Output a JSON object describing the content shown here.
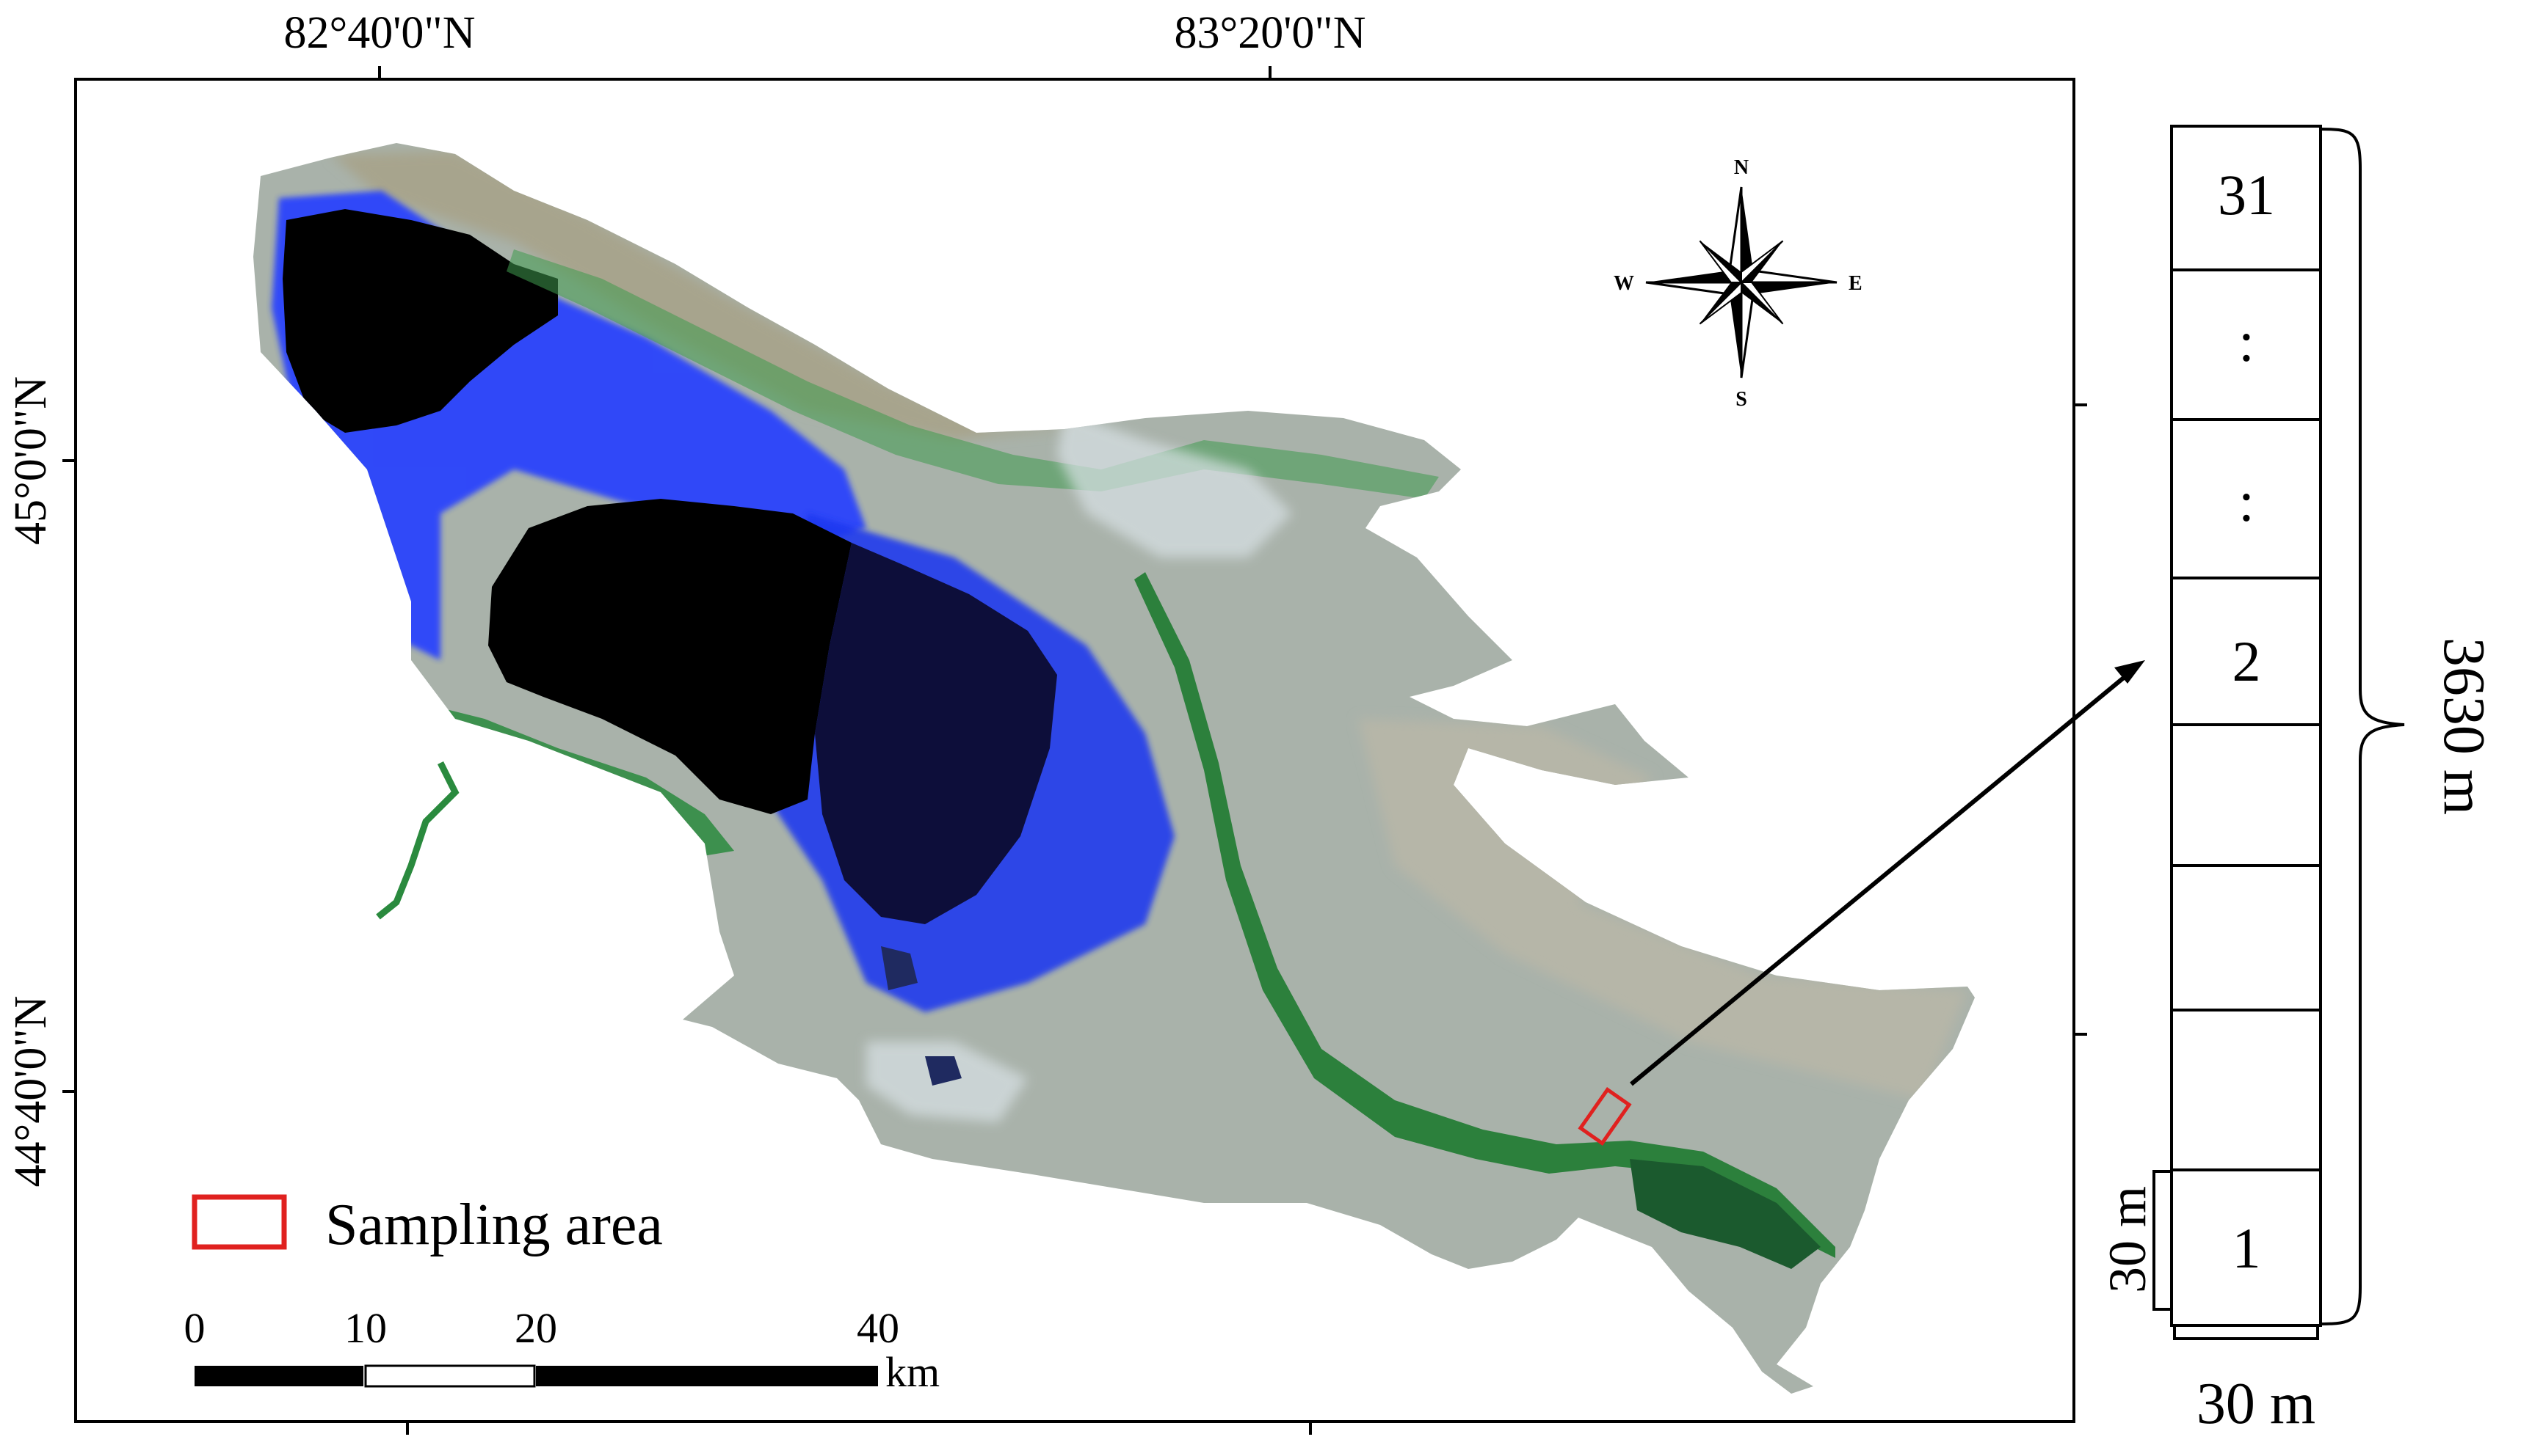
{
  "map": {
    "lon_labels": [
      "82°40'0\"N",
      "83°20'0\"N"
    ],
    "lat_labels": [
      "45°0'0\"N",
      "44°40'0\"N"
    ],
    "compass": {
      "n": "N",
      "s": "S",
      "e": "E",
      "w": "W"
    },
    "legend": {
      "label": "Sampling area",
      "color": "#e0211f"
    },
    "scale_bar": {
      "ticks": [
        "0",
        "10",
        "20",
        "40"
      ],
      "unit": "km"
    },
    "colors": {
      "lake": "#000000",
      "lake_dark_blue": "#0d0e3a",
      "wetland": "#1f3dff",
      "vegetation": "#2f8a3c",
      "desert": "#a9b2aa",
      "mountain": "#a7a48d"
    }
  },
  "sampling_strip": {
    "cells": [
      "31",
      ":",
      ":",
      "2",
      "",
      "",
      "",
      "1"
    ],
    "length_label": "3630 m",
    "cell_height_label": "30 m",
    "cell_width_label": "30 m"
  }
}
